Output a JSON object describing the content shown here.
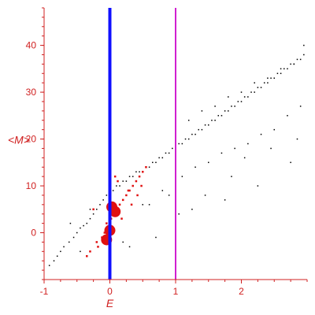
{
  "chart_data": {
    "type": "scatter",
    "title": "",
    "xlabel": "E",
    "ylabel": "<M>",
    "xlim": [
      -1,
      3
    ],
    "ylim": [
      -10,
      48
    ],
    "xticks": [
      -1,
      0,
      1,
      2
    ],
    "yticks": [
      0,
      10,
      20,
      30,
      40
    ],
    "grid": false,
    "colors": {
      "axes": "#d02020",
      "black_points": "#000000",
      "red_points": "#e01010",
      "vline_blue": "#1010ff",
      "vline_magenta": "#d020d0"
    },
    "vlines": [
      {
        "x": 0,
        "color": "#1010ff"
      },
      {
        "x": 1,
        "color": "#d020d0"
      }
    ],
    "series": [
      {
        "color": "#000000",
        "marker": "dot",
        "x": [
          -0.92,
          -0.85,
          -0.8,
          -0.75,
          -0.7,
          -0.62,
          -0.55,
          -0.5,
          -0.45,
          -0.4,
          -0.35,
          -0.3,
          -0.25,
          -0.2,
          -0.15,
          -0.1,
          -0.05,
          0.05,
          0.1,
          0.15,
          0.2,
          0.25,
          0.3,
          0.35,
          0.4,
          0.45,
          0.5,
          0.55,
          0.6,
          0.65,
          0.7,
          0.75,
          0.8,
          0.85,
          0.9,
          0.95,
          1.0,
          1.05,
          1.1,
          1.15,
          1.2,
          1.25,
          1.3,
          1.35,
          1.4,
          1.45,
          1.5,
          1.55,
          1.6,
          1.65,
          1.7,
          1.75,
          1.8,
          1.85,
          1.9,
          1.95,
          2.0,
          2.05,
          2.1,
          2.15,
          2.2,
          2.25,
          2.3,
          2.35,
          2.4,
          2.45,
          2.5,
          2.55,
          2.6,
          2.65,
          2.7,
          2.75,
          2.8,
          2.85,
          2.9,
          2.95,
          0.6,
          0.9,
          1.1,
          1.3,
          1.5,
          1.7,
          1.9,
          2.1,
          2.3,
          2.5,
          2.7,
          2.9,
          1.2,
          1.6,
          2.0,
          2.4,
          2.8,
          1.4,
          1.8,
          2.2,
          2.6,
          2.95,
          -0.6,
          -0.3,
          0.2,
          0.5,
          0.8,
          1.0,
          1.25,
          1.75,
          2.25,
          2.75,
          -0.45,
          0.0,
          0.3,
          0.7,
          1.05,
          1.45,
          1.85,
          2.05,
          2.45,
          2.85
        ],
        "y": [
          -7,
          -6,
          -5,
          -4,
          -3,
          -2,
          -1,
          0,
          1,
          1.5,
          2,
          3,
          4,
          5,
          6,
          7,
          8,
          9,
          10,
          10,
          11,
          11,
          12,
          12,
          13,
          13,
          13,
          14,
          14,
          15,
          15,
          16,
          16,
          17,
          17,
          18,
          18,
          19,
          19,
          20,
          20,
          21,
          21,
          22,
          22,
          23,
          23,
          24,
          24,
          25,
          25,
          26,
          26,
          27,
          27,
          28,
          28,
          29,
          29,
          30,
          30,
          31,
          31,
          32,
          32,
          33,
          33,
          34,
          34,
          35,
          35,
          36,
          36,
          37,
          37,
          38,
          6,
          8,
          12,
          14,
          15,
          17,
          18,
          19,
          21,
          22,
          25,
          27,
          24,
          27,
          30,
          33,
          36,
          26,
          29,
          32,
          35,
          40,
          2,
          5,
          -2,
          6,
          9,
          3,
          5,
          7,
          10,
          15,
          -4,
          -6,
          -3,
          -1,
          4,
          8,
          12,
          16,
          18,
          20
        ],
        "size": 1.5
      },
      {
        "color": "#e01010",
        "marker": "square",
        "x": [
          -0.35,
          -0.3,
          -0.2,
          -0.12,
          -0.08,
          -0.05,
          0.02,
          0.05,
          0.1,
          0.15,
          0.2,
          0.25,
          0.3,
          0.35,
          0.4,
          0.45,
          0.5,
          0.55,
          -0.18,
          0.0,
          0.12,
          0.28,
          0.42,
          -0.25,
          0.08,
          0.18,
          0.33,
          0.48
        ],
        "y": [
          -5,
          -4,
          -2,
          -1,
          0,
          2,
          3,
          4,
          5,
          6,
          7,
          8,
          9,
          10,
          11,
          12,
          13,
          14,
          -3,
          6,
          11,
          9,
          8,
          5,
          12,
          3,
          6,
          10
        ],
        "size": 2.5
      },
      {
        "color": "#e01010",
        "marker": "circle",
        "x": [
          -0.05,
          0.0,
          0.03,
          0.08
        ],
        "y": [
          -1.5,
          0.5,
          5.5,
          4.5
        ],
        "size": 7
      }
    ]
  }
}
